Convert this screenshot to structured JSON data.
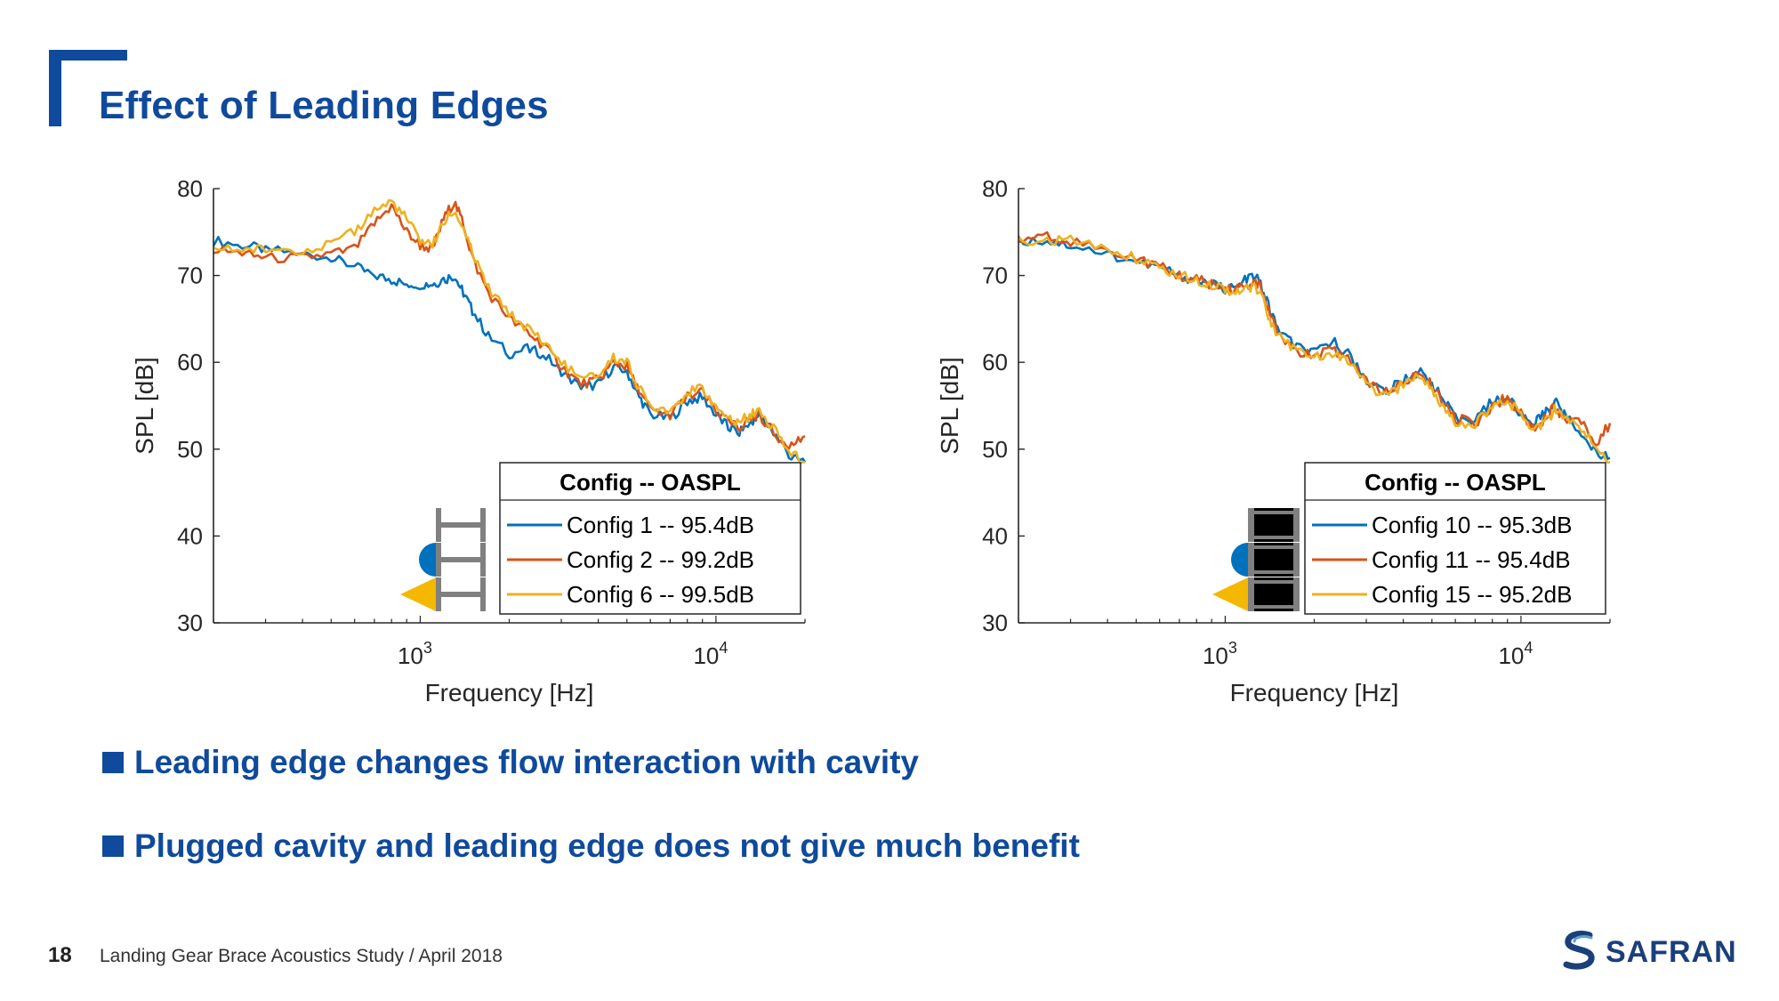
{
  "slide": {
    "title": "Effect of Leading Edges",
    "page_number": "18",
    "footer": "Landing Gear Brace Acoustics Study / April 2018",
    "logo_text": "SAFRAN",
    "bullets": [
      "Leading edge changes flow interaction with cavity",
      "Plugged cavity and leading edge does not give much benefit"
    ]
  },
  "colors": {
    "brand": "#0f4a9c",
    "series_blue": "#0072bd",
    "series_orange": "#d95319",
    "series_yellow": "#edb120"
  },
  "chart_data": [
    {
      "type": "line",
      "title": "",
      "xlabel": "Frequency [Hz]",
      "ylabel": "SPL [dB]",
      "x_scale": "log",
      "xlim": [
        200,
        20000
      ],
      "ylim": [
        30,
        80
      ],
      "y_ticks": [
        "80",
        "70",
        "60",
        "50",
        "40",
        "30"
      ],
      "x_tick_base": "10",
      "x_ticks": [
        {
          "value": 1000,
          "exponent": "3"
        },
        {
          "value": 10000,
          "exponent": "4"
        }
      ],
      "legend": {
        "title": "Config -- OASPL",
        "placement": "bottom-right"
      },
      "series": [
        {
          "name": "Config 1 -- 95.4dB",
          "color": "#0072bd",
          "shape": "plain",
          "x": [
            200,
            250,
            300,
            400,
            500,
            600,
            700,
            800,
            900,
            1000,
            1100,
            1200,
            1300,
            1400,
            1500,
            1700,
            2000,
            2300,
            2600,
            3000,
            3500,
            4000,
            4500,
            5000,
            5500,
            6000,
            7000,
            8000,
            9000,
            10000,
            11000,
            12000,
            13000,
            14000,
            16000,
            18000,
            20000
          ],
          "y": [
            74,
            73.5,
            73,
            72.5,
            72,
            71,
            70,
            69.5,
            69,
            69,
            69,
            69.5,
            70,
            68,
            66,
            63,
            61,
            61.5,
            61,
            59,
            57,
            57.5,
            59.5,
            59,
            56,
            54,
            53.5,
            55.5,
            56,
            54,
            52.5,
            52,
            53,
            54,
            51.5,
            49,
            48.5
          ]
        },
        {
          "name": "Config 2 -- 99.2dB",
          "color": "#d95319",
          "shape": "half-circle",
          "x": [
            200,
            250,
            300,
            400,
            500,
            600,
            700,
            800,
            900,
            1000,
            1100,
            1200,
            1300,
            1400,
            1500,
            1700,
            2000,
            2300,
            2600,
            3000,
            3500,
            4000,
            4500,
            5000,
            5500,
            6000,
            7000,
            8000,
            9000,
            10000,
            11000,
            12000,
            13000,
            14000,
            16000,
            18000,
            20000
          ],
          "y": [
            73,
            72.5,
            72,
            72,
            72.5,
            73,
            76,
            78,
            75,
            73.5,
            73,
            76.5,
            78.5,
            76,
            72,
            68,
            65,
            63.5,
            62,
            59.5,
            57.5,
            58,
            60,
            59.5,
            56.5,
            54.5,
            54,
            56,
            56.5,
            54.5,
            53,
            52.5,
            53.5,
            54,
            51.5,
            50.5,
            51.5
          ]
        },
        {
          "name": "Config 6 -- 99.5dB",
          "color": "#edb120",
          "shape": "triangle",
          "x": [
            200,
            250,
            300,
            400,
            500,
            600,
            700,
            800,
            900,
            1000,
            1100,
            1200,
            1300,
            1400,
            1500,
            1700,
            2000,
            2300,
            2600,
            3000,
            3500,
            4000,
            4500,
            5000,
            5500,
            6000,
            7000,
            8000,
            9000,
            10000,
            11000,
            12000,
            13000,
            14000,
            16000,
            18000,
            20000
          ],
          "y": [
            73,
            73,
            73,
            73,
            73.5,
            75,
            77.5,
            78.5,
            76.5,
            74,
            73.5,
            76,
            77.5,
            75.5,
            72.5,
            68.5,
            65.5,
            64,
            62.5,
            60,
            58,
            58.5,
            60.5,
            60,
            57,
            55,
            54.5,
            56.5,
            57,
            55,
            53.5,
            53,
            54,
            54.5,
            52,
            49.5,
            48.5
          ]
        }
      ]
    },
    {
      "type": "line",
      "title": "",
      "xlabel": "Frequency [Hz]",
      "ylabel": "SPL [dB]",
      "x_scale": "log",
      "xlim": [
        200,
        20000
      ],
      "ylim": [
        30,
        80
      ],
      "y_ticks": [
        "80",
        "70",
        "60",
        "50",
        "40",
        "30"
      ],
      "x_tick_base": "10",
      "x_ticks": [
        {
          "value": 1000,
          "exponent": "3"
        },
        {
          "value": 10000,
          "exponent": "4"
        }
      ],
      "legend": {
        "title": "Config -- OASPL",
        "placement": "bottom-right"
      },
      "series": [
        {
          "name": "Config 10 -- 95.3dB",
          "color": "#0072bd",
          "shape": "plain",
          "x": [
            200,
            250,
            300,
            400,
            500,
            600,
            700,
            800,
            900,
            1000,
            1100,
            1200,
            1300,
            1400,
            1500,
            1700,
            2000,
            2300,
            2600,
            3000,
            3500,
            4000,
            4500,
            5000,
            5500,
            6000,
            7000,
            8000,
            9000,
            10000,
            11000,
            12000,
            13000,
            14000,
            16000,
            18000,
            20000
          ],
          "y": [
            74,
            74,
            73.5,
            72.5,
            71.5,
            71,
            70,
            69.5,
            69,
            68.5,
            68.5,
            70,
            69.5,
            66.5,
            64,
            62,
            61,
            62.5,
            61,
            58,
            56.5,
            58,
            59,
            57.5,
            55.5,
            53.5,
            53.5,
            55.5,
            56,
            54,
            53,
            54,
            55.5,
            54,
            52,
            49.5,
            49
          ]
        },
        {
          "name": "Config 11 -- 95.4dB",
          "color": "#d95319",
          "shape": "half-circle",
          "x": [
            200,
            250,
            300,
            400,
            500,
            600,
            700,
            800,
            900,
            1000,
            1100,
            1200,
            1300,
            1400,
            1500,
            1700,
            2000,
            2300,
            2600,
            3000,
            3500,
            4000,
            4500,
            5000,
            5500,
            6000,
            7000,
            8000,
            9000,
            10000,
            11000,
            12000,
            13000,
            14000,
            16000,
            18000,
            20000
          ],
          "y": [
            74,
            74.5,
            74,
            73,
            72,
            71,
            70,
            69.5,
            69,
            68.5,
            68.5,
            69,
            69,
            66,
            63.5,
            61.5,
            60.5,
            61.5,
            60.5,
            58,
            56.5,
            57.5,
            58.5,
            57.5,
            55,
            53.5,
            53,
            55,
            56,
            54,
            52.5,
            53.5,
            55,
            53.5,
            53.5,
            50.5,
            53
          ]
        },
        {
          "name": "Config 15 -- 95.2dB",
          "color": "#edb120",
          "shape": "triangle",
          "x": [
            200,
            250,
            300,
            400,
            500,
            600,
            700,
            800,
            900,
            1000,
            1100,
            1200,
            1300,
            1400,
            1500,
            1700,
            2000,
            2300,
            2600,
            3000,
            3500,
            4000,
            4500,
            5000,
            5500,
            6000,
            7000,
            8000,
            9000,
            10000,
            11000,
            12000,
            13000,
            14000,
            16000,
            18000,
            20000
          ],
          "y": [
            74,
            74,
            74,
            73,
            72,
            71,
            70,
            69.5,
            69,
            68.5,
            68,
            68.5,
            68.5,
            65.5,
            63,
            61.5,
            60.5,
            61,
            60,
            57.5,
            56,
            57.5,
            58.5,
            57,
            54.5,
            53,
            53,
            55,
            55.5,
            54,
            52.5,
            53,
            54.5,
            53.5,
            52.5,
            50,
            48.5
          ]
        }
      ]
    }
  ]
}
